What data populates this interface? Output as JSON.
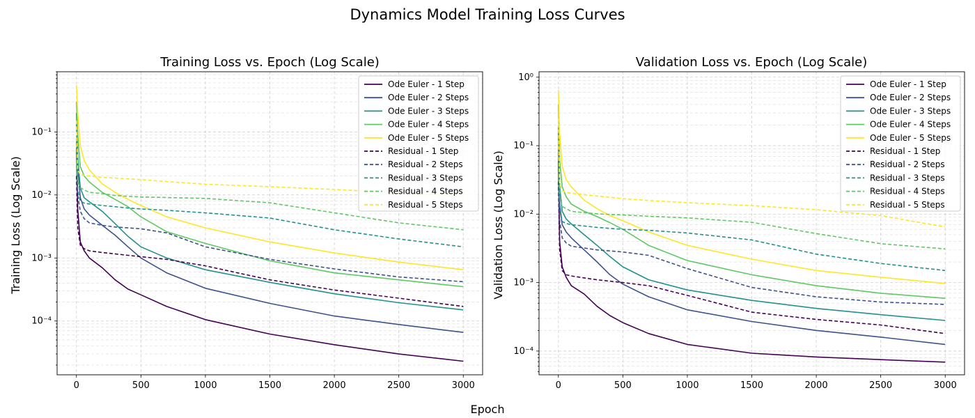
{
  "figure": {
    "title": "Dynamics Model Training Loss Curves",
    "xlabel": "Epoch"
  },
  "colors": {
    "step1": "#440154",
    "step2": "#3b528b",
    "step3": "#21918c",
    "step4": "#5ec962",
    "step5": "#fde725",
    "grid": "#b0b0b0"
  },
  "chart_data": [
    {
      "type": "line",
      "title": "Training Loss vs. Epoch (Log Scale)",
      "xlabel": "",
      "ylabel": "Training Loss (Log Scale)",
      "xlim": [
        -150,
        3150
      ],
      "ylim": [
        1.4e-05,
        0.9
      ],
      "yscale": "log",
      "grid": true,
      "legend": "top-right",
      "xticks": [
        0,
        500,
        1000,
        1500,
        2000,
        2500,
        3000
      ],
      "xtick_labels": [
        "0",
        "500",
        "1000",
        "1500",
        "2000",
        "2500",
        "3000"
      ],
      "yticks": [
        0.0001,
        0.001,
        0.01,
        0.1
      ],
      "ytick_labels": [
        "10⁻⁴",
        "10⁻³",
        "10⁻²",
        "10⁻¹"
      ],
      "series": [
        {
          "name": "Ode Euler - 1 Step",
          "style": "solid",
          "color_key": "step1",
          "x": [
            0,
            10,
            30,
            60,
            100,
            200,
            300,
            400,
            500,
            700,
            1000,
            1500,
            2000,
            2500,
            3000
          ],
          "y": [
            0.055,
            0.006,
            0.0018,
            0.0013,
            0.001,
            0.0007,
            0.00045,
            0.00032,
            0.00026,
            0.00017,
            0.000105,
            6.2e-05,
            4.2e-05,
            3e-05,
            2.3e-05
          ]
        },
        {
          "name": "Ode Euler - 2 Steps",
          "style": "solid",
          "color_key": "step2",
          "x": [
            0,
            10,
            30,
            60,
            100,
            200,
            300,
            400,
            500,
            700,
            1000,
            1500,
            2000,
            2500,
            3000
          ],
          "y": [
            0.14,
            0.03,
            0.009,
            0.006,
            0.0048,
            0.0033,
            0.0023,
            0.0015,
            0.001,
            0.00058,
            0.00033,
            0.00019,
            0.00012,
            8.8e-05,
            6.6e-05
          ]
        },
        {
          "name": "Ode Euler - 3 Steps",
          "style": "solid",
          "color_key": "step3",
          "x": [
            0,
            10,
            30,
            60,
            100,
            200,
            300,
            400,
            500,
            700,
            1000,
            1500,
            2000,
            2500,
            3000
          ],
          "y": [
            0.2,
            0.04,
            0.013,
            0.009,
            0.0078,
            0.0055,
            0.0035,
            0.0022,
            0.0015,
            0.001,
            0.00065,
            0.00041,
            0.00027,
            0.000195,
            0.00015
          ]
        },
        {
          "name": "Ode Euler - 4 Steps",
          "style": "solid",
          "color_key": "step4",
          "x": [
            0,
            10,
            30,
            60,
            100,
            200,
            300,
            400,
            500,
            700,
            1000,
            1500,
            2000,
            2500,
            3000
          ],
          "y": [
            0.3,
            0.09,
            0.028,
            0.02,
            0.016,
            0.011,
            0.0085,
            0.0065,
            0.0045,
            0.0026,
            0.0017,
            0.0009,
            0.00058,
            0.00045,
            0.00035
          ]
        },
        {
          "name": "Ode Euler - 5 Steps",
          "style": "solid",
          "color_key": "step5",
          "x": [
            0,
            10,
            30,
            60,
            100,
            200,
            300,
            400,
            500,
            700,
            1000,
            1500,
            2000,
            2500,
            3000
          ],
          "y": [
            0.55,
            0.2,
            0.06,
            0.035,
            0.025,
            0.015,
            0.011,
            0.0085,
            0.0068,
            0.0045,
            0.003,
            0.0018,
            0.0012,
            0.00086,
            0.00065
          ]
        },
        {
          "name": "Residual - 1 Step",
          "style": "dashed",
          "color_key": "step1",
          "x": [
            0,
            10,
            30,
            60,
            100,
            200,
            300,
            400,
            500,
            700,
            1000,
            1500,
            2000,
            2500,
            3000
          ],
          "y": [
            0.02,
            0.003,
            0.0016,
            0.0014,
            0.0013,
            0.00122,
            0.00116,
            0.0011,
            0.00105,
            0.00095,
            0.00075,
            0.00045,
            0.00031,
            0.00023,
            0.00017
          ]
        },
        {
          "name": "Residual - 2 Steps",
          "style": "dashed",
          "color_key": "step2",
          "x": [
            0,
            10,
            30,
            60,
            100,
            200,
            300,
            400,
            500,
            700,
            1000,
            1500,
            2000,
            2500,
            3000
          ],
          "y": [
            0.05,
            0.01,
            0.0055,
            0.0042,
            0.0036,
            0.0033,
            0.0031,
            0.003,
            0.0029,
            0.0025,
            0.0015,
            0.00095,
            0.00067,
            0.0005,
            0.00042
          ]
        },
        {
          "name": "Residual - 3 Steps",
          "style": "dashed",
          "color_key": "step3",
          "x": [
            0,
            10,
            30,
            60,
            100,
            200,
            300,
            400,
            500,
            700,
            1000,
            1500,
            2000,
            2500,
            3000
          ],
          "y": [
            0.07,
            0.012,
            0.008,
            0.0074,
            0.0072,
            0.0068,
            0.0065,
            0.0062,
            0.006,
            0.0057,
            0.0052,
            0.0043,
            0.0028,
            0.002,
            0.0015
          ]
        },
        {
          "name": "Residual - 4 Steps",
          "style": "dashed",
          "color_key": "step4",
          "x": [
            0,
            10,
            30,
            60,
            100,
            200,
            300,
            400,
            500,
            700,
            1000,
            1500,
            2000,
            2500,
            3000
          ],
          "y": [
            0.08,
            0.016,
            0.013,
            0.012,
            0.011,
            0.0105,
            0.0098,
            0.0095,
            0.0093,
            0.0091,
            0.0088,
            0.0075,
            0.0052,
            0.0036,
            0.0028
          ]
        },
        {
          "name": "Residual - 5 Steps",
          "style": "dashed",
          "color_key": "step5",
          "x": [
            0,
            10,
            30,
            60,
            100,
            200,
            300,
            400,
            500,
            700,
            1000,
            1500,
            2000,
            2500,
            3000
          ],
          "y": [
            0.15,
            0.025,
            0.021,
            0.0205,
            0.02,
            0.019,
            0.0185,
            0.018,
            0.0175,
            0.0163,
            0.0148,
            0.0135,
            0.0122,
            0.0108,
            0.0095
          ]
        }
      ]
    },
    {
      "type": "line",
      "title": "Validation Loss vs. Epoch (Log Scale)",
      "xlabel": "",
      "ylabel": "Validation Loss (Log Scale)",
      "xlim": [
        -150,
        3150
      ],
      "ylim": [
        4.5e-05,
        1.2
      ],
      "yscale": "log",
      "grid": true,
      "legend": "top-right",
      "xticks": [
        0,
        500,
        1000,
        1500,
        2000,
        2500,
        3000
      ],
      "xtick_labels": [
        "0",
        "500",
        "1000",
        "1500",
        "2000",
        "2500",
        "3000"
      ],
      "yticks": [
        0.0001,
        0.001,
        0.01,
        0.1,
        1
      ],
      "ytick_labels": [
        "10⁻⁴",
        "10⁻³",
        "10⁻²",
        "10⁻¹",
        "10⁰"
      ],
      "series": [
        {
          "name": "Ode Euler - 1 Step",
          "style": "solid",
          "color_key": "step1",
          "x": [
            0,
            10,
            30,
            60,
            100,
            200,
            300,
            400,
            500,
            700,
            1000,
            1500,
            2000,
            2500,
            3000
          ],
          "y": [
            0.06,
            0.004,
            0.0017,
            0.0012,
            0.0009,
            0.00068,
            0.00045,
            0.00033,
            0.00026,
            0.00018,
            0.000125,
            9.3e-05,
            8.2e-05,
            7.5e-05,
            6.9e-05
          ]
        },
        {
          "name": "Ode Euler - 2 Steps",
          "style": "solid",
          "color_key": "step2",
          "x": [
            0,
            10,
            30,
            60,
            100,
            200,
            300,
            400,
            500,
            700,
            1000,
            1500,
            2000,
            2500,
            3000
          ],
          "y": [
            0.16,
            0.014,
            0.007,
            0.0055,
            0.0045,
            0.003,
            0.002,
            0.0013,
            0.00095,
            0.00062,
            0.0004,
            0.00027,
            0.0002,
            0.00016,
            0.000125
          ]
        },
        {
          "name": "Ode Euler - 3 Steps",
          "style": "solid",
          "color_key": "step3",
          "x": [
            0,
            10,
            30,
            60,
            100,
            200,
            300,
            400,
            500,
            700,
            1000,
            1500,
            2000,
            2500,
            3000
          ],
          "y": [
            0.2,
            0.025,
            0.011,
            0.0085,
            0.0072,
            0.005,
            0.0035,
            0.0024,
            0.0017,
            0.0011,
            0.00078,
            0.00055,
            0.00042,
            0.00034,
            0.00028
          ]
        },
        {
          "name": "Ode Euler - 4 Steps",
          "style": "solid",
          "color_key": "step4",
          "x": [
            0,
            10,
            30,
            60,
            100,
            200,
            300,
            400,
            500,
            700,
            1000,
            1500,
            2000,
            2500,
            3000
          ],
          "y": [
            0.4,
            0.06,
            0.025,
            0.018,
            0.014,
            0.011,
            0.0092,
            0.0075,
            0.006,
            0.0035,
            0.0021,
            0.0013,
            0.0009,
            0.0007,
            0.00059
          ]
        },
        {
          "name": "Ode Euler - 5 Steps",
          "style": "solid",
          "color_key": "step5",
          "x": [
            0,
            10,
            30,
            60,
            100,
            200,
            300,
            400,
            500,
            700,
            1000,
            1500,
            2000,
            2500,
            3000
          ],
          "y": [
            0.65,
            0.15,
            0.05,
            0.032,
            0.025,
            0.016,
            0.012,
            0.0095,
            0.008,
            0.0055,
            0.0035,
            0.0022,
            0.0015,
            0.0012,
            0.00097
          ]
        },
        {
          "name": "Residual - 1 Step",
          "style": "dashed",
          "color_key": "step1",
          "x": [
            0,
            10,
            30,
            60,
            100,
            200,
            300,
            400,
            500,
            700,
            1000,
            1500,
            2000,
            2500,
            3000
          ],
          "y": [
            0.03,
            0.003,
            0.0015,
            0.0013,
            0.00125,
            0.00117,
            0.0011,
            0.00105,
            0.001,
            0.0009,
            0.00065,
            0.00037,
            0.00029,
            0.00024,
            0.00018
          ]
        },
        {
          "name": "Residual - 2 Steps",
          "style": "dashed",
          "color_key": "step2",
          "x": [
            0,
            10,
            30,
            60,
            100,
            200,
            300,
            400,
            500,
            700,
            1000,
            1500,
            2000,
            2500,
            3000
          ],
          "y": [
            0.08,
            0.008,
            0.0045,
            0.0038,
            0.0034,
            0.0032,
            0.003,
            0.0029,
            0.0028,
            0.0025,
            0.0016,
            0.00085,
            0.00062,
            0.00052,
            0.00048
          ]
        },
        {
          "name": "Residual - 3 Steps",
          "style": "dashed",
          "color_key": "step3",
          "x": [
            0,
            10,
            30,
            60,
            100,
            200,
            300,
            400,
            500,
            700,
            1000,
            1500,
            2000,
            2500,
            3000
          ],
          "y": [
            0.09,
            0.012,
            0.0078,
            0.0073,
            0.007,
            0.0067,
            0.0064,
            0.0062,
            0.006,
            0.0058,
            0.0053,
            0.0042,
            0.0026,
            0.0019,
            0.0015
          ]
        },
        {
          "name": "Residual - 4 Steps",
          "style": "dashed",
          "color_key": "step4",
          "x": [
            0,
            10,
            30,
            60,
            100,
            200,
            300,
            400,
            500,
            700,
            1000,
            1500,
            2000,
            2500,
            3000
          ],
          "y": [
            0.12,
            0.018,
            0.013,
            0.012,
            0.011,
            0.0105,
            0.0101,
            0.0099,
            0.0097,
            0.0093,
            0.0088,
            0.0076,
            0.0052,
            0.0037,
            0.0031
          ]
        },
        {
          "name": "Residual - 5 Steps",
          "style": "dashed",
          "color_key": "step5",
          "x": [
            0,
            10,
            30,
            60,
            100,
            200,
            300,
            400,
            500,
            700,
            1000,
            1500,
            2000,
            2500,
            3000
          ],
          "y": [
            0.25,
            0.028,
            0.022,
            0.0208,
            0.0202,
            0.0192,
            0.0184,
            0.0176,
            0.0168,
            0.0158,
            0.0147,
            0.0133,
            0.0116,
            0.0095,
            0.0065
          ]
        }
      ]
    }
  ]
}
